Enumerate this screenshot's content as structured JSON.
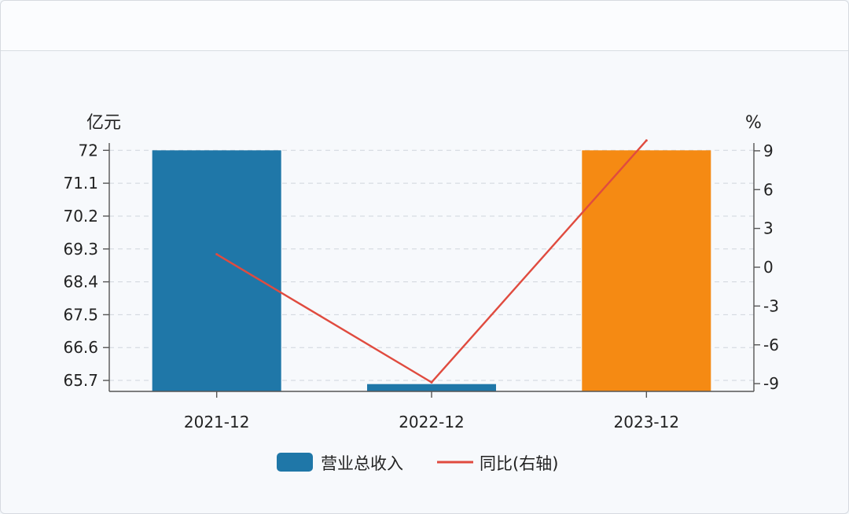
{
  "chart_data": {
    "type": "bar",
    "categories": [
      "2021-12",
      "2022-12",
      "2023-12"
    ],
    "series": [
      {
        "name": "营业总收入",
        "kind": "bar",
        "axis": "left",
        "values": [
          72.0,
          65.6,
          72.0
        ],
        "colors": [
          "#1f77a8",
          "#1f77a8",
          "#f58a13"
        ]
      },
      {
        "name": "同比(右轴)",
        "kind": "line",
        "axis": "right",
        "values": [
          1.0,
          -8.9,
          9.8
        ],
        "color": "#e04b3f"
      }
    ],
    "left_axis": {
      "unit": "亿元",
      "ticks": [
        "65.7",
        "66.6",
        "67.5",
        "68.4",
        "69.3",
        "70.2",
        "71.1",
        "72"
      ],
      "ylim": [
        65.4,
        72.2
      ]
    },
    "right_axis": {
      "unit": "%",
      "ticks": [
        "-9",
        "-6",
        "-3",
        "0",
        "3",
        "6",
        "9"
      ],
      "ylim": [
        -9.6,
        9.6
      ]
    },
    "grid": true,
    "legend_position": "bottom"
  }
}
